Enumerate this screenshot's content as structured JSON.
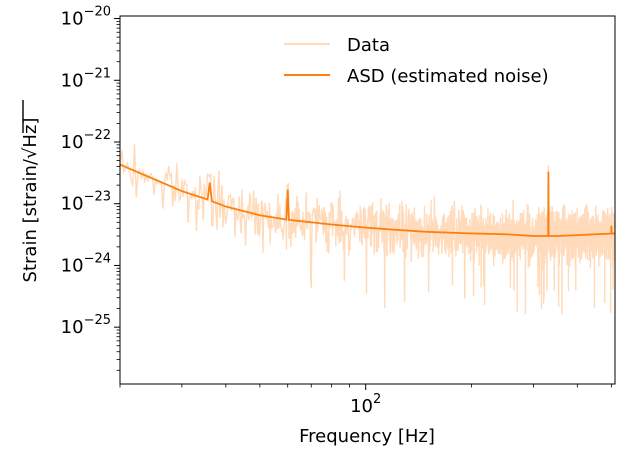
{
  "chart_data": {
    "type": "line",
    "xlabel": "Frequency [Hz]",
    "ylabel_prefix": "Strain [strain/",
    "ylabel_radical": "√",
    "ylabel_unit": "Hz",
    "ylabel_suffix": "]",
    "x_scale": "log",
    "y_scale": "log",
    "xlim": [
      20,
      512
    ],
    "ylim": [
      1.2e-26,
      1.1e-20
    ],
    "x_major_ticks": [
      {
        "value": 100,
        "base": "10",
        "exp": "2"
      }
    ],
    "y_major_ticks": [
      {
        "value": 1e-20,
        "base": "10",
        "exp": "−20"
      },
      {
        "value": 1e-21,
        "base": "10",
        "exp": "−21"
      },
      {
        "value": 1e-22,
        "base": "10",
        "exp": "−22"
      },
      {
        "value": 1e-23,
        "base": "10",
        "exp": "−23"
      },
      {
        "value": 1e-24,
        "base": "10",
        "exp": "−24"
      },
      {
        "value": 1e-25,
        "base": "10",
        "exp": "−25"
      }
    ],
    "legend_position": "top-right",
    "grid": false,
    "series": [
      {
        "name": "Data",
        "color": "#ffdbbb",
        "kind": "noisy",
        "x": [
          20,
          25,
          30,
          35,
          40,
          50,
          60,
          70,
          80,
          100,
          120,
          150,
          200,
          250,
          300,
          350,
          400,
          450,
          512
        ],
        "y": [
          4.3e-23,
          2.5e-23,
          1.6e-23,
          1.2e-23,
          9e-24,
          6.5e-24,
          5.5e-24,
          5e-24,
          4.6e-24,
          4.1e-24,
          3.8e-24,
          3.5e-24,
          3.3e-24,
          3.2e-24,
          3e-24,
          3e-24,
          3.1e-24,
          3.2e-24,
          3.3e-24
        ]
      },
      {
        "name": "ASD (estimated noise)",
        "color": "#ff7f0e",
        "kind": "smooth",
        "x": [
          20,
          25,
          30,
          35,
          40,
          50,
          60,
          70,
          80,
          100,
          120,
          150,
          200,
          250,
          300,
          350,
          400,
          450,
          512
        ],
        "y": [
          4.3e-23,
          2.5e-23,
          1.6e-23,
          1.2e-23,
          9e-24,
          6.5e-24,
          5.5e-24,
          5e-24,
          4.6e-24,
          4.1e-24,
          3.8e-24,
          3.5e-24,
          3.3e-24,
          3.2e-24,
          3e-24,
          3e-24,
          3.1e-24,
          3.2e-24,
          3.3e-24
        ]
      }
    ],
    "spectral_lines": [
      {
        "freq": 35.9,
        "peak": 2.2e-23
      },
      {
        "freq": 60.0,
        "peak": 1.7e-23
      },
      {
        "freq": 331.0,
        "peak": 3.3e-23
      },
      {
        "freq": 500.0,
        "peak": 4.4e-24
      }
    ]
  }
}
